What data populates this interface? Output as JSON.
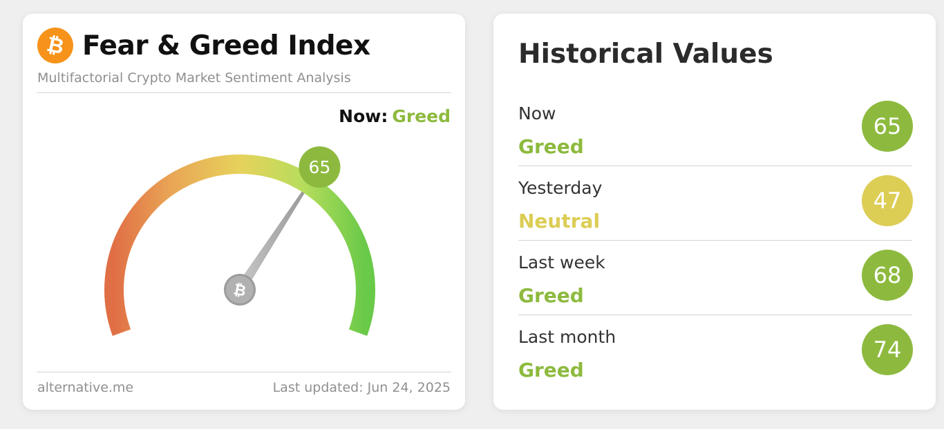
{
  "fear_greed": {
    "title": "Fear & Greed Index",
    "subtitle": "Multifactorial Crypto Market Sentiment Analysis",
    "now_label": "Now:",
    "now_classification": "Greed",
    "value": 65,
    "value_text": "65",
    "scale": [
      0,
      100
    ],
    "footer_source": "alternative.me",
    "footer_updated": "Last updated: Jun 24, 2025",
    "logo_icon": "bitcoin-icon"
  },
  "historical": {
    "title": "Historical Values",
    "rows": [
      {
        "label": "Now",
        "classification": "Greed",
        "value": "65",
        "color": "#8dba3e"
      },
      {
        "label": "Yesterday",
        "classification": "Neutral",
        "value": "47",
        "color": "#dccd55"
      },
      {
        "label": "Last week",
        "classification": "Greed",
        "value": "68",
        "color": "#8dba3e"
      },
      {
        "label": "Last month",
        "classification": "Greed",
        "value": "74",
        "color": "#8dba3e"
      }
    ]
  },
  "colors": {
    "greed": "#8dba3e",
    "neutral": "#dccd55",
    "bitcoin": "#f7931a"
  }
}
